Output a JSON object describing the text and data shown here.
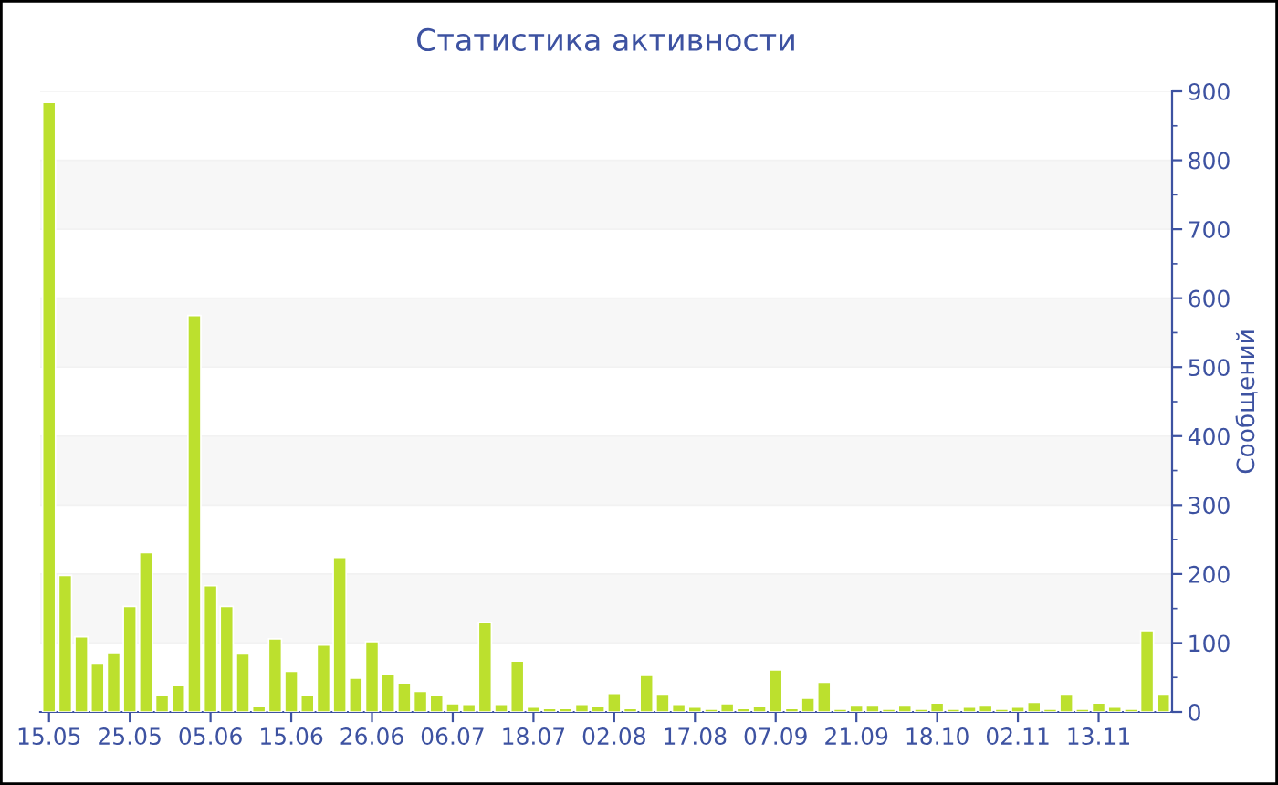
{
  "chart_data": {
    "type": "bar",
    "title": "Статистика активности",
    "y2label": "Сообщений",
    "categories": [
      "15.05",
      null,
      null,
      null,
      null,
      "25.05",
      null,
      null,
      null,
      null,
      "05.06",
      null,
      null,
      null,
      null,
      "15.06",
      null,
      null,
      null,
      null,
      "26.06",
      null,
      null,
      null,
      null,
      "06.07",
      null,
      null,
      null,
      null,
      "18.07",
      null,
      null,
      null,
      null,
      "02.08",
      null,
      null,
      null,
      null,
      "17.08",
      null,
      null,
      null,
      null,
      "07.09",
      null,
      null,
      null,
      null,
      "21.09",
      null,
      null,
      null,
      null,
      "18.10",
      null,
      null,
      null,
      null,
      "02.11",
      null,
      null,
      null,
      null,
      "13.11",
      null,
      null,
      null,
      null
    ],
    "series": [
      {
        "color": "#bce02e",
        "axis": "y2",
        "values": [
          884,
          198,
          109,
          71,
          86,
          153,
          231,
          25,
          38,
          575,
          183,
          153,
          84,
          9,
          106,
          59,
          24,
          97,
          224,
          49,
          102,
          55,
          42,
          30,
          24,
          12,
          11,
          130,
          11,
          74,
          7,
          5,
          5,
          11,
          8,
          27,
          5,
          53,
          26,
          11,
          7,
          4,
          12,
          5,
          8,
          61,
          5,
          20,
          43,
          4,
          10,
          10,
          4,
          10,
          4,
          13,
          4,
          7,
          10,
          4,
          7,
          14,
          4,
          26,
          4,
          13,
          7,
          4,
          118,
          26
        ]
      }
    ],
    "y2lim": [
      0,
      900
    ],
    "y2ticks": [
      0,
      100,
      200,
      300,
      400,
      500,
      600,
      700,
      800,
      900
    ],
    "grid": "y"
  }
}
